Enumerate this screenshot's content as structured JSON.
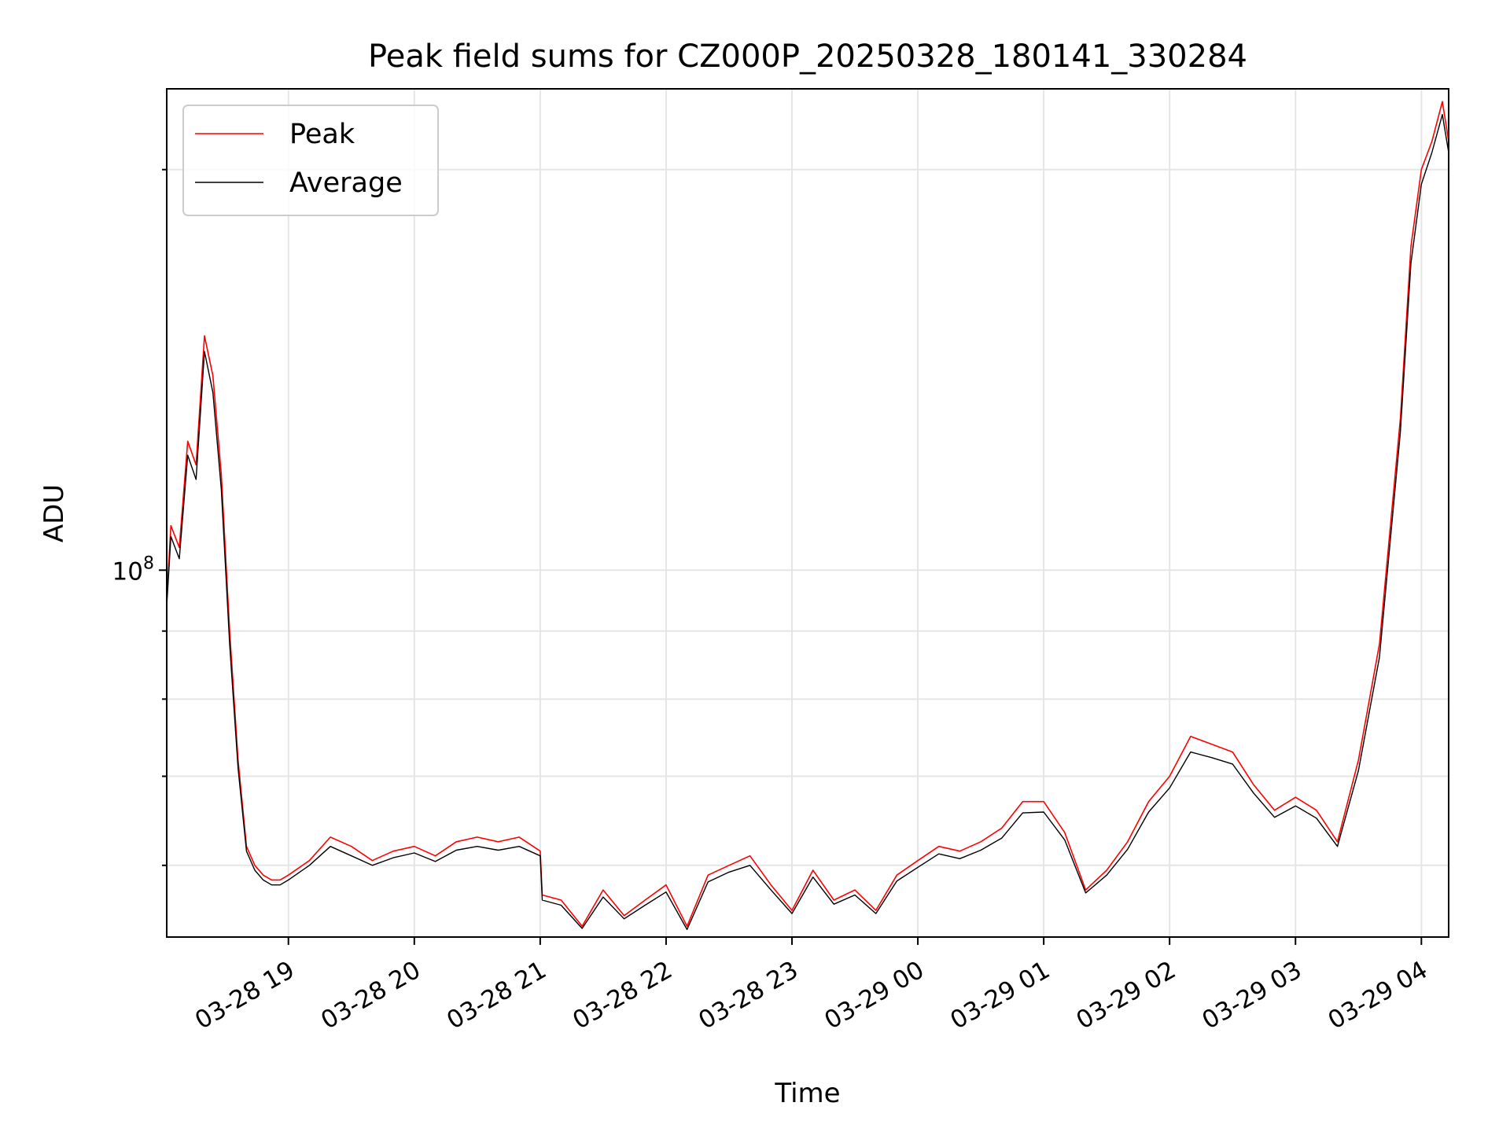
{
  "chart_data": {
    "type": "line",
    "title": "Peak field sums for CZ000P_20250328_180141_330284",
    "xlabel": "Time",
    "ylabel": "ADU",
    "x_scale": "time",
    "y_scale": "log",
    "y_tick_label": "10^8",
    "y_tick_value": 100000000,
    "ylim": [
      53000000,
      230000000
    ],
    "xlim": [
      "2025-03-28 18:02",
      "2025-03-29 04:13"
    ],
    "x_ticks": [
      {
        "t": "2025-03-28 19:00",
        "label": "03-28 19"
      },
      {
        "t": "2025-03-28 20:00",
        "label": "03-28 20"
      },
      {
        "t": "2025-03-28 21:00",
        "label": "03-28 21"
      },
      {
        "t": "2025-03-28 22:00",
        "label": "03-28 22"
      },
      {
        "t": "2025-03-28 23:00",
        "label": "03-28 23"
      },
      {
        "t": "2025-03-29 00:00",
        "label": "03-29 00"
      },
      {
        "t": "2025-03-29 01:00",
        "label": "03-29 01"
      },
      {
        "t": "2025-03-29 02:00",
        "label": "03-29 02"
      },
      {
        "t": "2025-03-29 03:00",
        "label": "03-29 03"
      },
      {
        "t": "2025-03-29 04:00",
        "label": "03-29 04"
      }
    ],
    "grid": true,
    "legend": {
      "position": "top-left"
    },
    "series": [
      {
        "name": "Peak",
        "color": "#ff0000",
        "x": [
          "2025-03-28 18:02",
          "2025-03-28 18:04",
          "2025-03-28 18:08",
          "2025-03-28 18:12",
          "2025-03-28 18:16",
          "2025-03-28 18:20",
          "2025-03-28 18:24",
          "2025-03-28 18:28",
          "2025-03-28 18:32",
          "2025-03-28 18:36",
          "2025-03-28 18:40",
          "2025-03-28 18:44",
          "2025-03-28 18:48",
          "2025-03-28 18:52",
          "2025-03-28 18:56",
          "2025-03-28 19:00",
          "2025-03-28 19:10",
          "2025-03-28 19:20",
          "2025-03-28 19:30",
          "2025-03-28 19:40",
          "2025-03-28 19:50",
          "2025-03-28 20:00",
          "2025-03-28 20:10",
          "2025-03-28 20:20",
          "2025-03-28 20:30",
          "2025-03-28 20:40",
          "2025-03-28 20:50",
          "2025-03-28 21:00",
          "2025-03-28 21:01",
          "2025-03-28 21:10",
          "2025-03-28 21:20",
          "2025-03-28 21:30",
          "2025-03-28 21:40",
          "2025-03-28 21:50",
          "2025-03-28 22:00",
          "2025-03-28 22:10",
          "2025-03-28 22:20",
          "2025-03-28 22:30",
          "2025-03-28 22:40",
          "2025-03-28 22:50",
          "2025-03-28 23:00",
          "2025-03-28 23:10",
          "2025-03-28 23:20",
          "2025-03-28 23:30",
          "2025-03-28 23:40",
          "2025-03-28 23:50",
          "2025-03-29 00:00",
          "2025-03-29 00:10",
          "2025-03-29 00:20",
          "2025-03-29 00:30",
          "2025-03-29 00:40",
          "2025-03-29 00:50",
          "2025-03-29 01:00",
          "2025-03-29 01:10",
          "2025-03-29 01:20",
          "2025-03-29 01:30",
          "2025-03-29 01:40",
          "2025-03-29 01:50",
          "2025-03-29 02:00",
          "2025-03-29 02:10",
          "2025-03-29 02:20",
          "2025-03-29 02:30",
          "2025-03-29 02:40",
          "2025-03-29 02:50",
          "2025-03-29 03:00",
          "2025-03-29 03:10",
          "2025-03-29 03:20",
          "2025-03-29 03:30",
          "2025-03-29 03:40",
          "2025-03-29 03:50",
          "2025-03-29 03:55",
          "2025-03-29 04:00",
          "2025-03-29 04:05",
          "2025-03-29 04:10",
          "2025-03-29 04:13"
        ],
        "y": [
          95000000,
          108000000,
          104000000,
          125000000,
          120000000,
          150000000,
          140000000,
          118000000,
          90000000,
          72000000,
          62000000,
          60000000,
          59000000,
          58500000,
          58500000,
          59000000,
          60500000,
          63000000,
          62000000,
          60500000,
          61500000,
          62000000,
          61000000,
          62500000,
          63000000,
          62500000,
          63000000,
          61500000,
          57000000,
          56500000,
          54000000,
          57500000,
          55000000,
          56500000,
          58000000,
          54000000,
          59000000,
          60000000,
          61000000,
          58000000,
          55500000,
          59500000,
          56500000,
          57500000,
          55500000,
          59000000,
          60500000,
          62000000,
          61500000,
          62500000,
          64000000,
          67000000,
          67000000,
          63500000,
          57500000,
          59500000,
          62500000,
          67000000,
          70000000,
          75000000,
          74000000,
          73000000,
          69000000,
          66000000,
          67500000,
          66000000,
          62500000,
          72000000,
          88000000,
          130000000,
          175000000,
          200000000,
          210000000,
          225000000,
          210000000
        ]
      },
      {
        "name": "Average",
        "color": "#000000",
        "x": [
          "2025-03-28 18:02",
          "2025-03-28 18:04",
          "2025-03-28 18:08",
          "2025-03-28 18:12",
          "2025-03-28 18:16",
          "2025-03-28 18:20",
          "2025-03-28 18:24",
          "2025-03-28 18:28",
          "2025-03-28 18:32",
          "2025-03-28 18:36",
          "2025-03-28 18:40",
          "2025-03-28 18:44",
          "2025-03-28 18:48",
          "2025-03-28 18:52",
          "2025-03-28 18:56",
          "2025-03-28 19:00",
          "2025-03-28 19:10",
          "2025-03-28 19:20",
          "2025-03-28 19:30",
          "2025-03-28 19:40",
          "2025-03-28 19:50",
          "2025-03-28 20:00",
          "2025-03-28 20:10",
          "2025-03-28 20:20",
          "2025-03-28 20:30",
          "2025-03-28 20:40",
          "2025-03-28 20:50",
          "2025-03-28 21:00",
          "2025-03-28 21:01",
          "2025-03-28 21:10",
          "2025-03-28 21:20",
          "2025-03-28 21:30",
          "2025-03-28 21:40",
          "2025-03-28 21:50",
          "2025-03-28 22:00",
          "2025-03-28 22:10",
          "2025-03-28 22:20",
          "2025-03-28 22:30",
          "2025-03-28 22:40",
          "2025-03-28 22:50",
          "2025-03-28 23:00",
          "2025-03-28 23:10",
          "2025-03-28 23:20",
          "2025-03-28 23:30",
          "2025-03-28 23:40",
          "2025-03-28 23:50",
          "2025-03-29 00:00",
          "2025-03-29 00:10",
          "2025-03-29 00:20",
          "2025-03-29 00:30",
          "2025-03-29 00:40",
          "2025-03-29 00:50",
          "2025-03-29 01:00",
          "2025-03-29 01:10",
          "2025-03-29 01:20",
          "2025-03-29 01:30",
          "2025-03-29 01:40",
          "2025-03-29 01:50",
          "2025-03-29 02:00",
          "2025-03-29 02:10",
          "2025-03-29 02:20",
          "2025-03-29 02:30",
          "2025-03-29 02:40",
          "2025-03-29 02:50",
          "2025-03-29 03:00",
          "2025-03-29 03:10",
          "2025-03-29 03:20",
          "2025-03-29 03:30",
          "2025-03-29 03:40",
          "2025-03-29 03:50",
          "2025-03-29 03:55",
          "2025-03-29 04:00",
          "2025-03-29 04:05",
          "2025-03-29 04:10",
          "2025-03-29 04:13"
        ],
        "y": [
          94000000,
          106000000,
          102000000,
          122000000,
          117000000,
          146000000,
          136000000,
          115000000,
          88000000,
          71000000,
          61500000,
          59500000,
          58500000,
          58000000,
          58000000,
          58500000,
          60000000,
          62000000,
          61000000,
          60000000,
          60800000,
          61300000,
          60400000,
          61600000,
          62000000,
          61600000,
          62000000,
          61000000,
          56500000,
          56000000,
          53800000,
          56800000,
          54700000,
          56000000,
          57300000,
          53700000,
          58300000,
          59300000,
          60000000,
          57500000,
          55200000,
          58800000,
          56100000,
          57000000,
          55200000,
          58400000,
          59800000,
          61200000,
          60700000,
          61600000,
          62900000,
          65700000,
          65800000,
          62700000,
          57200000,
          59000000,
          61700000,
          65800000,
          68600000,
          73000000,
          72300000,
          71500000,
          68000000,
          65200000,
          66500000,
          65100000,
          62000000,
          70700000,
          86000000,
          127000000,
          170000000,
          195000000,
          206000000,
          220000000,
          206000000
        ]
      }
    ]
  }
}
